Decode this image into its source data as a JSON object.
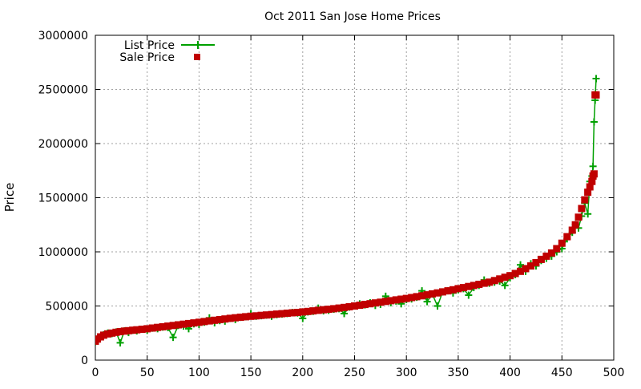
{
  "chart_data": {
    "type": "scatter",
    "title": "Oct 2011 San Jose Home Prices",
    "xlabel": "",
    "ylabel": "Price",
    "xlim": [
      0,
      500
    ],
    "ylim": [
      0,
      3000000
    ],
    "xticks": [
      0,
      50,
      100,
      150,
      200,
      250,
      300,
      350,
      400,
      450,
      500
    ],
    "yticks": [
      0,
      500000,
      1000000,
      1500000,
      2000000,
      2500000,
      3000000
    ],
    "xtick_labels": [
      "0",
      "50",
      "100",
      "150",
      "200",
      "250",
      "300",
      "350",
      "400",
      "450",
      "500"
    ],
    "ytick_labels": [
      "0",
      "500000",
      "1000000",
      "1500000",
      "2000000",
      "2500000",
      "3000000"
    ],
    "grid": true,
    "legend_position": "top-left",
    "series": [
      {
        "name": "List Price",
        "style": "line-with-plus-markers",
        "color": "#00a000",
        "x": [
          0,
          2,
          5,
          8,
          12,
          16,
          20,
          24,
          28,
          32,
          36,
          40,
          45,
          50,
          55,
          60,
          65,
          70,
          75,
          80,
          85,
          90,
          95,
          100,
          105,
          110,
          115,
          120,
          125,
          130,
          135,
          140,
          145,
          150,
          155,
          160,
          165,
          170,
          175,
          180,
          185,
          190,
          195,
          200,
          205,
          210,
          215,
          220,
          225,
          230,
          235,
          240,
          245,
          250,
          255,
          260,
          265,
          270,
          275,
          280,
          285,
          290,
          295,
          300,
          305,
          310,
          315,
          320,
          325,
          330,
          335,
          340,
          345,
          350,
          355,
          360,
          365,
          370,
          375,
          380,
          385,
          390,
          395,
          400,
          405,
          410,
          415,
          420,
          425,
          430,
          435,
          440,
          445,
          450,
          455,
          460,
          463,
          466,
          469,
          472,
          475,
          477,
          479,
          480,
          481,
          482,
          483
        ],
        "y": [
          170000,
          190000,
          215000,
          235000,
          250000,
          245000,
          260000,
          160000,
          270000,
          255000,
          275000,
          270000,
          285000,
          275000,
          295000,
          290000,
          305000,
          300000,
          210000,
          320000,
          315000,
          290000,
          335000,
          330000,
          350000,
          390000,
          345000,
          365000,
          360000,
          385000,
          375000,
          395000,
          400000,
          430000,
          405000,
          410000,
          415000,
          405000,
          420000,
          425000,
          430000,
          440000,
          435000,
          385000,
          445000,
          450000,
          480000,
          455000,
          460000,
          470000,
          475000,
          430000,
          490000,
          500000,
          520000,
          510000,
          530000,
          505000,
          515000,
          590000,
          530000,
          545000,
          520000,
          560000,
          565000,
          580000,
          640000,
          540000,
          610000,
          500000,
          630000,
          640000,
          620000,
          650000,
          660000,
          600000,
          670000,
          690000,
          740000,
          710000,
          720000,
          730000,
          690000,
          760000,
          790000,
          880000,
          820000,
          890000,
          870000,
          920000,
          940000,
          960000,
          1000000,
          1030000,
          1120000,
          1180000,
          1250000,
          1220000,
          1330000,
          1450000,
          1350000,
          1650000,
          1700000,
          1790000,
          2200000,
          2400000,
          2600000
        ]
      },
      {
        "name": "Sale Price",
        "style": "square-markers",
        "color": "#c00000",
        "x": [
          0,
          2,
          5,
          8,
          12,
          16,
          20,
          24,
          28,
          32,
          36,
          40,
          45,
          50,
          55,
          60,
          65,
          70,
          75,
          80,
          85,
          90,
          95,
          100,
          105,
          110,
          115,
          120,
          125,
          130,
          135,
          140,
          145,
          150,
          155,
          160,
          165,
          170,
          175,
          180,
          185,
          190,
          195,
          200,
          205,
          210,
          215,
          220,
          225,
          230,
          235,
          240,
          245,
          250,
          255,
          260,
          265,
          270,
          275,
          280,
          285,
          290,
          295,
          300,
          305,
          310,
          315,
          320,
          325,
          330,
          335,
          340,
          345,
          350,
          355,
          360,
          365,
          370,
          375,
          380,
          385,
          390,
          395,
          400,
          405,
          410,
          415,
          420,
          425,
          430,
          435,
          440,
          445,
          450,
          455,
          460,
          463,
          466,
          469,
          472,
          475,
          477,
          479,
          480,
          481,
          482,
          483
        ],
        "y": [
          175000,
          195000,
          215000,
          230000,
          242000,
          250000,
          257000,
          263000,
          268000,
          272000,
          276000,
          280000,
          285000,
          290000,
          296000,
          302000,
          308000,
          314000,
          320000,
          326000,
          332000,
          338000,
          344000,
          350000,
          356000,
          362000,
          368000,
          374000,
          380000,
          386000,
          391000,
          396000,
          401000,
          405000,
          409000,
          413000,
          417000,
          421000,
          425000,
          429000,
          433000,
          437000,
          441000,
          445000,
          450000,
          455000,
          460000,
          465000,
          470000,
          475000,
          481000,
          487000,
          493000,
          500000,
          507000,
          514000,
          521000,
          528000,
          535000,
          542000,
          549000,
          556000,
          563000,
          570000,
          578000,
          586000,
          594000,
          603000,
          612000,
          621000,
          630000,
          640000,
          650000,
          660000,
          670000,
          680000,
          690000,
          700000,
          710000,
          720000,
          735000,
          750000,
          765000,
          780000,
          800000,
          820000,
          845000,
          870000,
          900000,
          930000,
          960000,
          990000,
          1030000,
          1080000,
          1140000,
          1200000,
          1250000,
          1320000,
          1400000,
          1480000,
          1550000,
          1600000,
          1650000,
          1700000,
          1720000,
          2450000,
          2450000
        ]
      }
    ]
  }
}
